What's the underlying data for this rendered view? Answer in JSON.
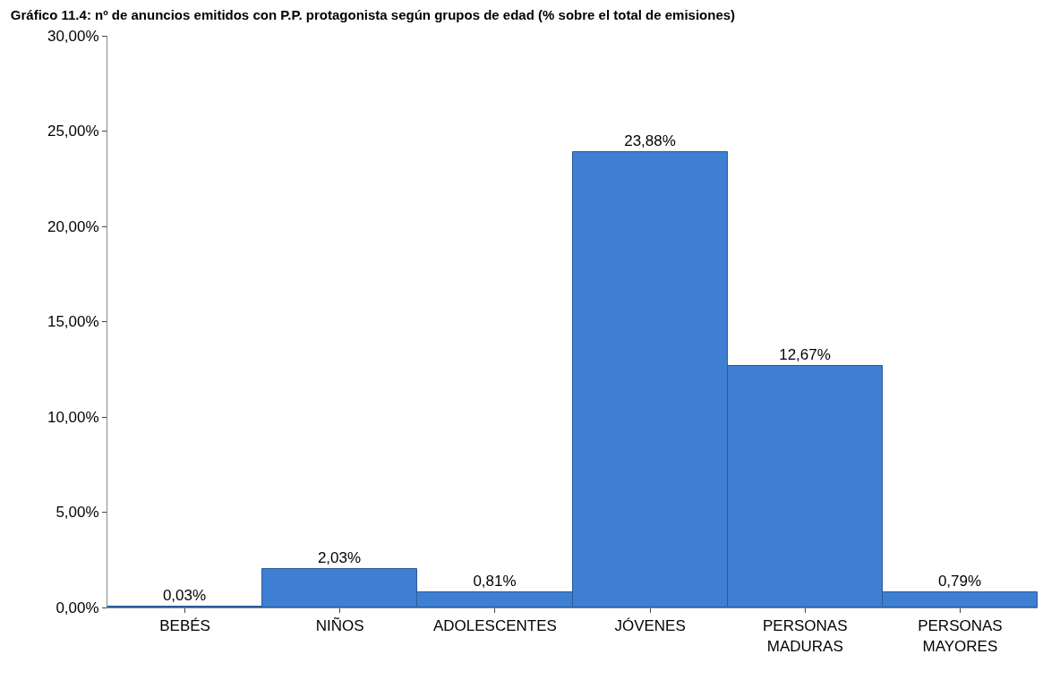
{
  "chart_data": {
    "type": "bar",
    "title": "Gráfico 11.4: nº de anuncios emitidos con P.P. protagonista según grupos de edad (% sobre el total de emisiones)",
    "categories": [
      "BEBÉS",
      "NIÑOS",
      "ADOLESCENTES",
      "JÓVENES",
      "PERSONAS MADURAS",
      "PERSONAS MAYORES"
    ],
    "values": [
      0.03,
      2.03,
      0.81,
      23.88,
      12.67,
      0.79
    ],
    "value_labels": [
      "0,03%",
      "2,03%",
      "0,81%",
      "23,88%",
      "12,67%",
      "0,79%"
    ],
    "color": "#3f7fd2",
    "ylim": [
      0,
      30
    ],
    "yticks": [
      {
        "value": 0,
        "label": "0,00%"
      },
      {
        "value": 5,
        "label": "5,00%"
      },
      {
        "value": 10,
        "label": "10,00%"
      },
      {
        "value": 15,
        "label": "15,00%"
      },
      {
        "value": 20,
        "label": "20,00%"
      },
      {
        "value": 25,
        "label": "25,00%"
      },
      {
        "value": 30,
        "label": "30,00%"
      }
    ],
    "grid": false,
    "legend": false
  }
}
